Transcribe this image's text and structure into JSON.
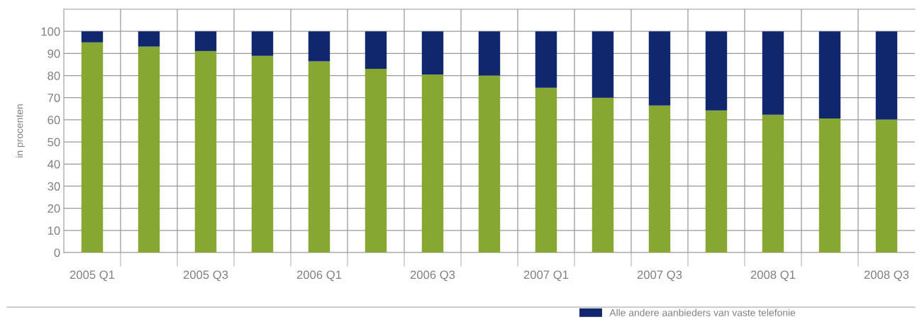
{
  "chart_data": {
    "type": "bar",
    "stacked": true,
    "ylabel": "in procenten",
    "categories": [
      "2005 Q1",
      null,
      "2005 Q3",
      null,
      "2006 Q1",
      null,
      "2006 Q3",
      null,
      "2007 Q1",
      null,
      "2007 Q3",
      null,
      "2008 Q1",
      null,
      "2008 Q3"
    ],
    "series": [
      {
        "color": "#86a832",
        "values": [
          95.0,
          93.1,
          91.1,
          88.9,
          86.4,
          83.1,
          80.5,
          80.0,
          74.5,
          70.0,
          66.5,
          64.2,
          62.3,
          60.6,
          60.1
        ]
      },
      {
        "name": "Alle andere aanbieders van vaste telefonie",
        "color": "#10276e",
        "values": [
          5.0,
          6.9,
          8.9,
          11.1,
          13.6,
          16.9,
          19.5,
          20.0,
          25.5,
          30.0,
          33.5,
          35.8,
          37.7,
          39.4,
          39.9
        ]
      }
    ],
    "ylim": [
      0,
      110
    ],
    "yticks": [
      0,
      10,
      20,
      30,
      40,
      50,
      60,
      70,
      80,
      90,
      100
    ],
    "grid": true,
    "legend": "bottom"
  }
}
